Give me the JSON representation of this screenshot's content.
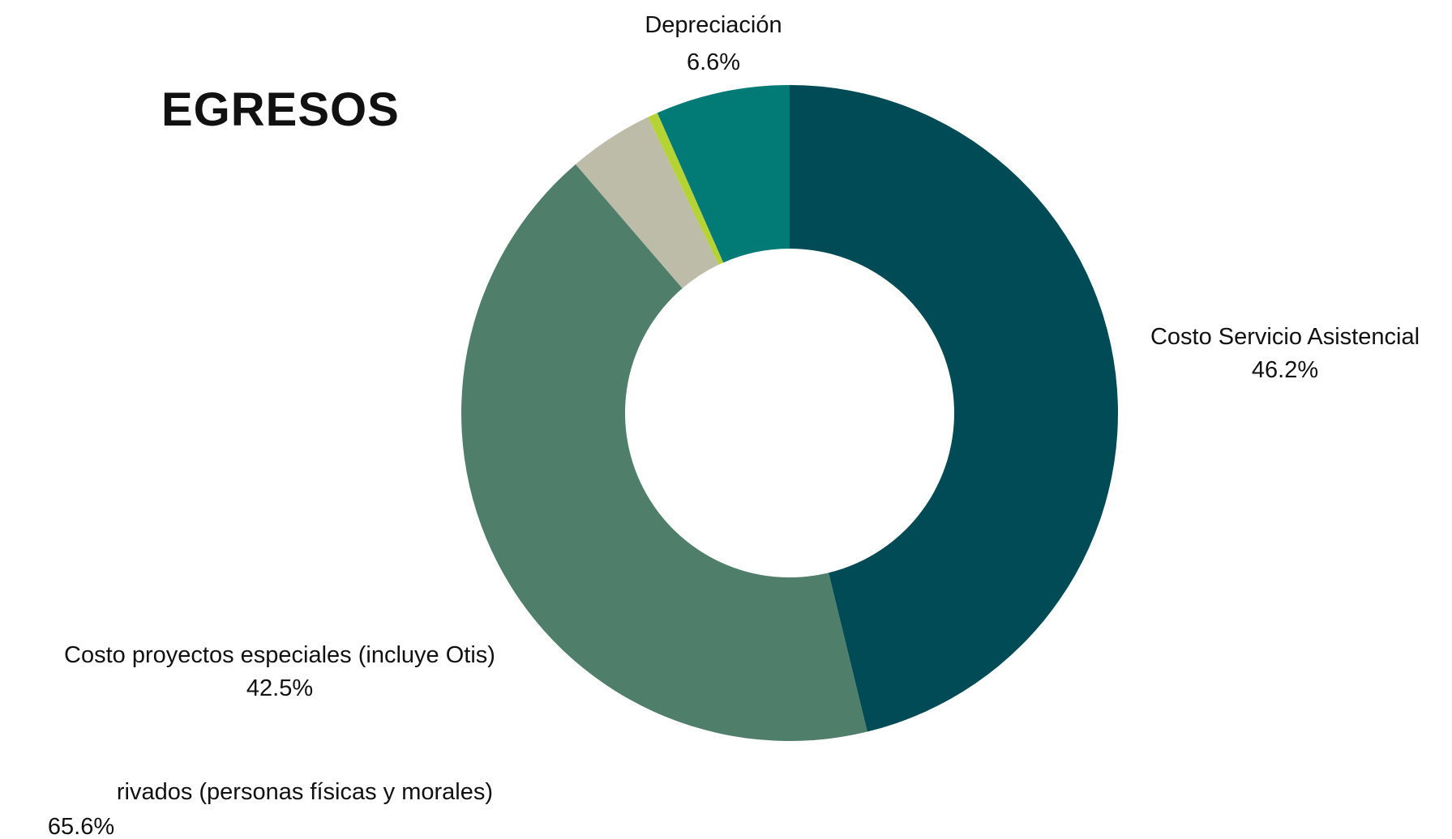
{
  "chart_data": {
    "type": "pie",
    "variant": "donut",
    "title": "EGRESOS",
    "slices": [
      {
        "label": "Costo Servicio Asistencial",
        "value": 46.2,
        "display": "46.2%",
        "color": "#014b56"
      },
      {
        "label": "Costo proyectos especiales (incluye Otis)",
        "value": 42.5,
        "display": "42.5%",
        "color": "#4f7f6b"
      },
      {
        "label": "",
        "value": 4.2,
        "display": "",
        "color": "#bdbca8"
      },
      {
        "label": "",
        "value": 0.5,
        "display": "",
        "color": "#b5d334"
      },
      {
        "label": "Depreciación",
        "value": 6.6,
        "display": "6.6%",
        "color": "#027b76"
      }
    ],
    "extra_label": {
      "label": "rivados (personas físicas y morales)",
      "display": "65.6%"
    },
    "legend": "none"
  }
}
